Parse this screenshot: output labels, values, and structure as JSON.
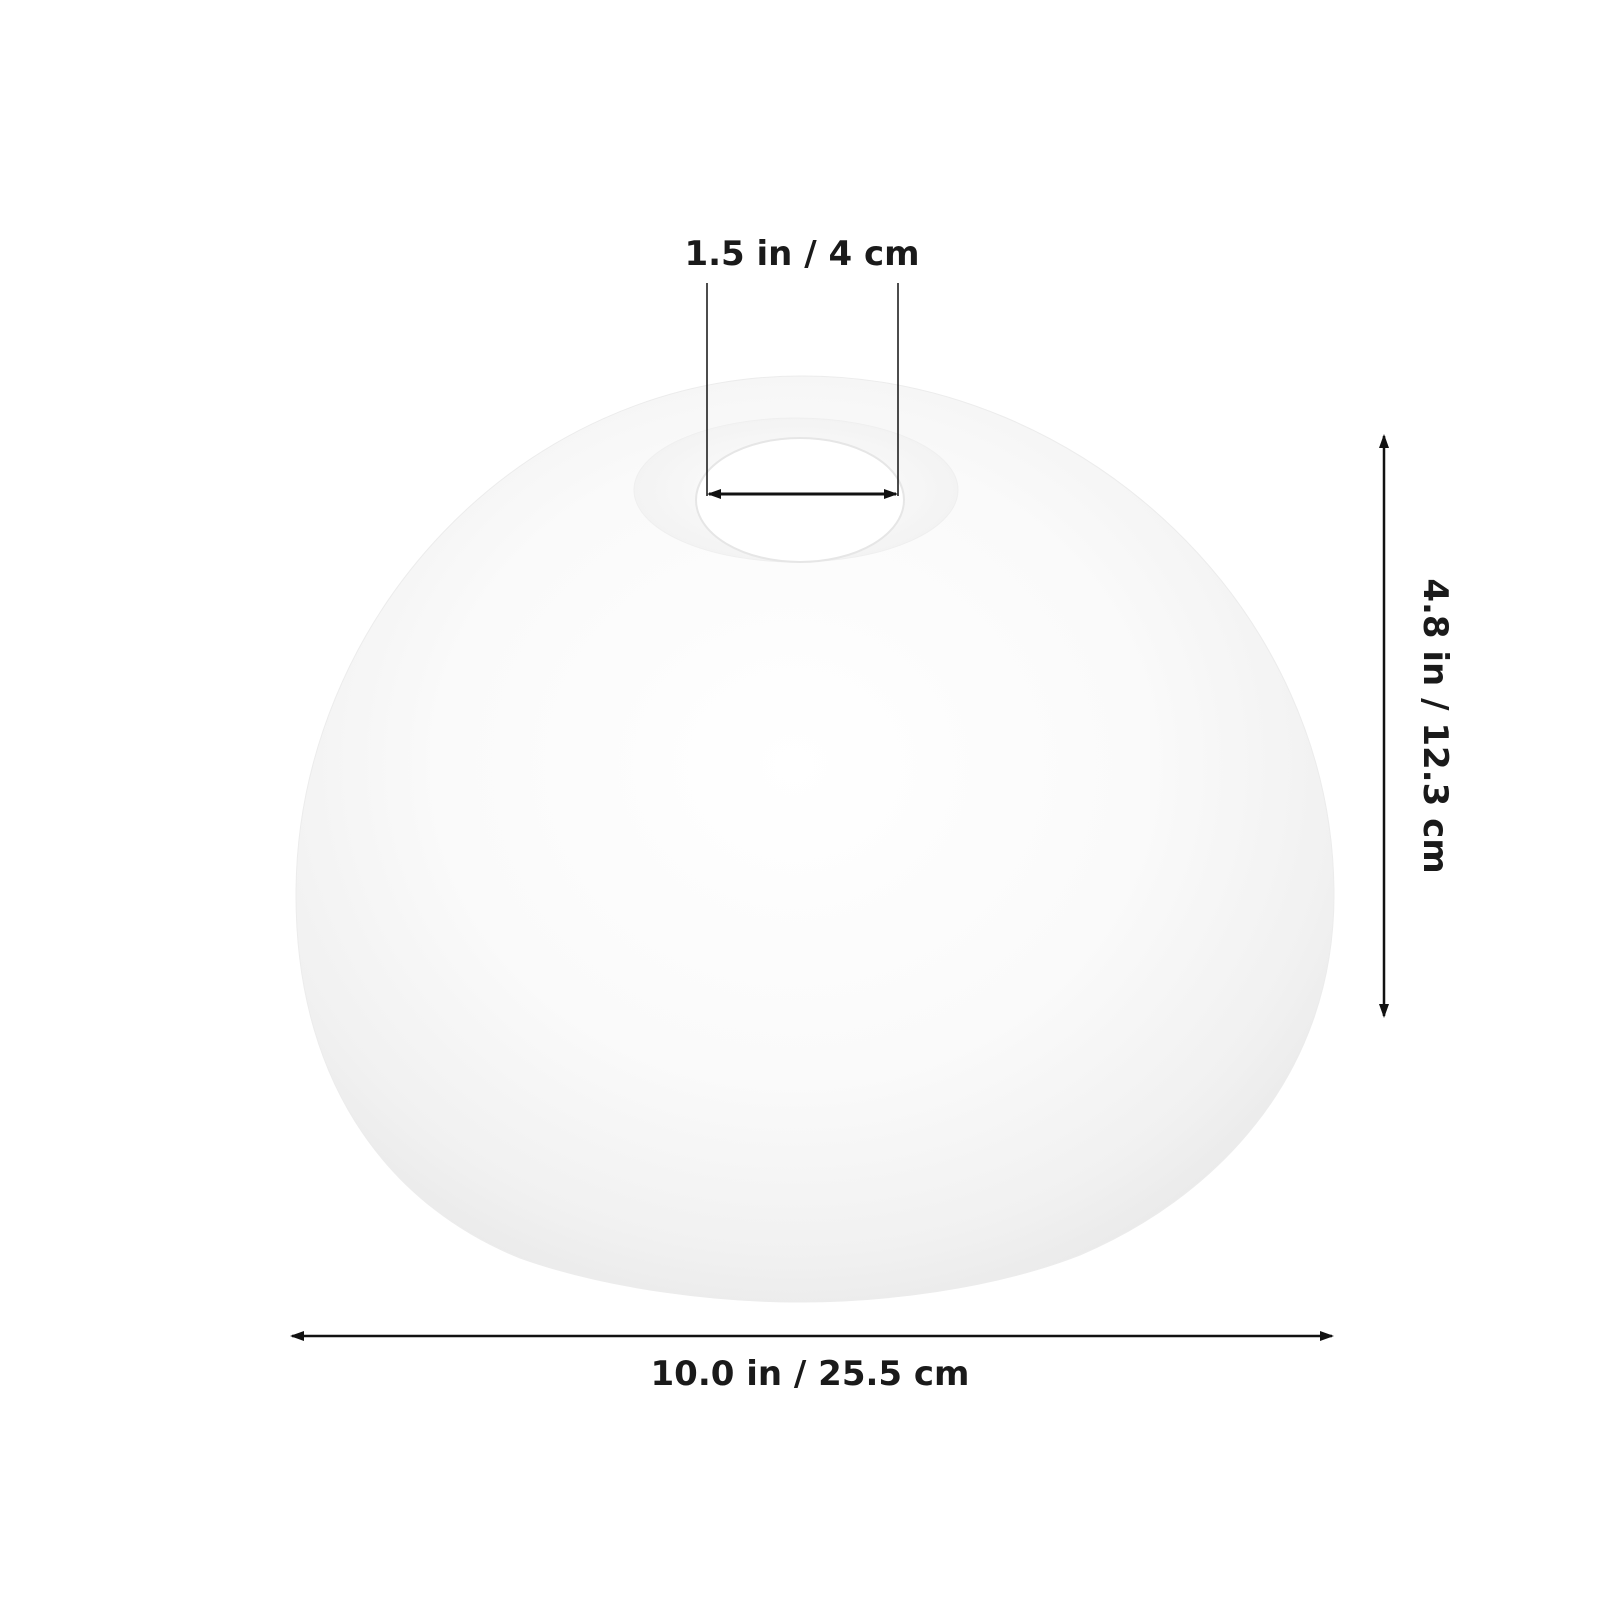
{
  "product": {
    "name": "lampshade-dome",
    "colors": {
      "background": "#ffffff",
      "shade": "#f6f6f6",
      "line": "#111111"
    }
  },
  "dimensions": {
    "opening": "1.5 in / 4 cm",
    "height": "4.8 in / 12.3 cm",
    "width": "10.0 in / 25.5 cm"
  }
}
